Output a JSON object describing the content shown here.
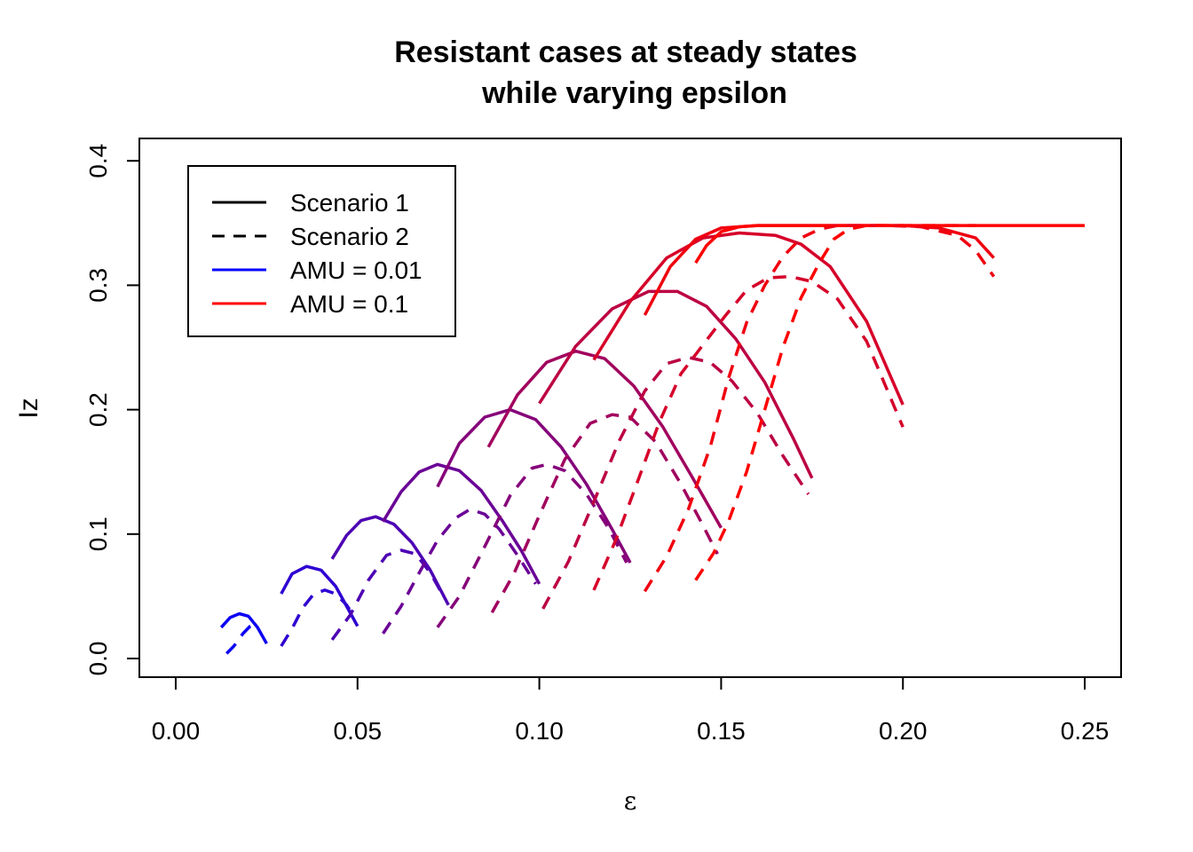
{
  "chart_data": {
    "type": "line",
    "title_line1": "Resistant cases at steady states",
    "title_line2": "while varying epsilon",
    "xlabel": "ε",
    "ylabel": "Iz",
    "xlim": [
      -0.01,
      0.26
    ],
    "ylim": [
      -0.015,
      0.418
    ],
    "x_ticks": [
      0.0,
      0.05,
      0.1,
      0.15,
      0.2,
      0.25
    ],
    "x_tick_labels": [
      "0.00",
      "0.05",
      "0.10",
      "0.15",
      "0.20",
      "0.25"
    ],
    "y_ticks": [
      0.0,
      0.1,
      0.2,
      0.3,
      0.4
    ],
    "y_tick_labels": [
      "0.0",
      "0.1",
      "0.2",
      "0.3",
      "0.4"
    ],
    "grid": false,
    "legend_placement": "top-left",
    "legend": [
      {
        "label": "Scenario 1",
        "color": "#000000",
        "dash": "solid"
      },
      {
        "label": "Scenario 2",
        "color": "#000000",
        "dash": "dashed"
      },
      {
        "label": "AMU = 0.01",
        "color": "#0000ff",
        "dash": "solid"
      },
      {
        "label": "AMU = 0.1",
        "color": "#ff0000",
        "dash": "solid"
      }
    ],
    "colors": [
      "#0d00f2",
      "#2e00d1",
      "#4d00b3",
      "#6a0096",
      "#85007a",
      "#a1005e",
      "#bc0043",
      "#d60029",
      "#ef0010",
      "#ff0000"
    ],
    "series": [
      {
        "scenario": 1,
        "amu_index": 0,
        "x": [
          0.0125,
          0.015,
          0.0175,
          0.02,
          0.0225,
          0.025
        ],
        "y": [
          0.025,
          0.033,
          0.036,
          0.034,
          0.025,
          0.012
        ]
      },
      {
        "scenario": 1,
        "amu_index": 1,
        "x": [
          0.029,
          0.032,
          0.036,
          0.04,
          0.044,
          0.047,
          0.05
        ],
        "y": [
          0.052,
          0.068,
          0.074,
          0.071,
          0.058,
          0.042,
          0.026
        ]
      },
      {
        "scenario": 1,
        "amu_index": 2,
        "x": [
          0.043,
          0.047,
          0.051,
          0.055,
          0.06,
          0.065,
          0.07,
          0.075
        ],
        "y": [
          0.08,
          0.099,
          0.111,
          0.114,
          0.108,
          0.093,
          0.071,
          0.043
        ]
      },
      {
        "scenario": 1,
        "amu_index": 3,
        "x": [
          0.057,
          0.062,
          0.067,
          0.072,
          0.078,
          0.084,
          0.09,
          0.095,
          0.1
        ],
        "y": [
          0.11,
          0.134,
          0.15,
          0.156,
          0.151,
          0.135,
          0.11,
          0.087,
          0.06
        ]
      },
      {
        "scenario": 1,
        "amu_index": 4,
        "x": [
          0.072,
          0.078,
          0.085,
          0.092,
          0.099,
          0.106,
          0.113,
          0.12,
          0.125
        ],
        "y": [
          0.138,
          0.173,
          0.194,
          0.2,
          0.192,
          0.17,
          0.14,
          0.104,
          0.077
        ]
      },
      {
        "scenario": 1,
        "amu_index": 5,
        "x": [
          0.086,
          0.094,
          0.102,
          0.11,
          0.118,
          0.126,
          0.134,
          0.142,
          0.15
        ],
        "y": [
          0.17,
          0.212,
          0.238,
          0.247,
          0.241,
          0.219,
          0.186,
          0.146,
          0.105
        ]
      },
      {
        "scenario": 1,
        "amu_index": 6,
        "x": [
          0.1,
          0.11,
          0.12,
          0.13,
          0.138,
          0.146,
          0.154,
          0.162,
          0.17,
          0.175
        ],
        "y": [
          0.205,
          0.251,
          0.281,
          0.295,
          0.295,
          0.283,
          0.257,
          0.222,
          0.176,
          0.145
        ]
      },
      {
        "scenario": 1,
        "amu_index": 7,
        "x": [
          0.115,
          0.125,
          0.135,
          0.145,
          0.155,
          0.165,
          0.172,
          0.18,
          0.19,
          0.2
        ],
        "y": [
          0.24,
          0.287,
          0.322,
          0.338,
          0.342,
          0.34,
          0.333,
          0.315,
          0.271,
          0.204
        ]
      },
      {
        "scenario": 1,
        "amu_index": 8,
        "x": [
          0.129,
          0.136,
          0.143,
          0.15,
          0.16,
          0.17,
          0.18,
          0.19,
          0.2,
          0.21,
          0.22,
          0.225
        ],
        "y": [
          0.276,
          0.315,
          0.337,
          0.346,
          0.348,
          0.348,
          0.348,
          0.348,
          0.348,
          0.346,
          0.338,
          0.322
        ]
      },
      {
        "scenario": 1,
        "amu_index": 9,
        "x": [
          0.143,
          0.146,
          0.15,
          0.155,
          0.16,
          0.17,
          0.18,
          0.19,
          0.2,
          0.21,
          0.22,
          0.23,
          0.24,
          0.25
        ],
        "y": [
          0.318,
          0.332,
          0.343,
          0.347,
          0.348,
          0.348,
          0.348,
          0.348,
          0.348,
          0.348,
          0.348,
          0.348,
          0.348,
          0.348
        ]
      },
      {
        "scenario": 2,
        "amu_index": 0,
        "x": [
          0.014,
          0.016,
          0.0185,
          0.0205,
          0.022
        ],
        "y": [
          0.004,
          0.01,
          0.02,
          0.026,
          0.028
        ]
      },
      {
        "scenario": 2,
        "amu_index": 1,
        "x": [
          0.029,
          0.032,
          0.035,
          0.038,
          0.041,
          0.044,
          0.047,
          0.049
        ],
        "y": [
          0.01,
          0.024,
          0.041,
          0.052,
          0.055,
          0.052,
          0.043,
          0.034
        ]
      },
      {
        "scenario": 2,
        "amu_index": 2,
        "x": [
          0.043,
          0.048,
          0.053,
          0.058,
          0.062,
          0.066,
          0.07,
          0.074
        ],
        "y": [
          0.015,
          0.035,
          0.063,
          0.083,
          0.087,
          0.084,
          0.069,
          0.048
        ]
      },
      {
        "scenario": 2,
        "amu_index": 3,
        "x": [
          0.057,
          0.062,
          0.067,
          0.072,
          0.077,
          0.081,
          0.085,
          0.089,
          0.094,
          0.099
        ],
        "y": [
          0.02,
          0.042,
          0.069,
          0.095,
          0.113,
          0.12,
          0.116,
          0.104,
          0.083,
          0.06
        ]
      },
      {
        "scenario": 2,
        "amu_index": 4,
        "x": [
          0.072,
          0.078,
          0.085,
          0.092,
          0.098,
          0.102,
          0.107,
          0.113,
          0.119,
          0.124
        ],
        "y": [
          0.025,
          0.05,
          0.09,
          0.131,
          0.153,
          0.156,
          0.151,
          0.132,
          0.105,
          0.077
        ]
      },
      {
        "scenario": 2,
        "amu_index": 5,
        "x": [
          0.087,
          0.093,
          0.1,
          0.107,
          0.114,
          0.12,
          0.125,
          0.132,
          0.139,
          0.145,
          0.149
        ],
        "y": [
          0.037,
          0.068,
          0.115,
          0.16,
          0.189,
          0.196,
          0.194,
          0.174,
          0.14,
          0.107,
          0.084
        ]
      },
      {
        "scenario": 2,
        "amu_index": 6,
        "x": [
          0.101,
          0.108,
          0.115,
          0.122,
          0.129,
          0.135,
          0.141,
          0.147,
          0.153,
          0.16,
          0.167,
          0.174
        ],
        "y": [
          0.04,
          0.078,
          0.126,
          0.175,
          0.215,
          0.237,
          0.242,
          0.238,
          0.223,
          0.197,
          0.163,
          0.132
        ]
      },
      {
        "scenario": 2,
        "amu_index": 7,
        "x": [
          0.115,
          0.121,
          0.127,
          0.133,
          0.139,
          0.145,
          0.151,
          0.157,
          0.163,
          0.169,
          0.175,
          0.182,
          0.19,
          0.2
        ],
        "y": [
          0.055,
          0.095,
          0.142,
          0.19,
          0.229,
          0.252,
          0.275,
          0.296,
          0.306,
          0.307,
          0.303,
          0.289,
          0.255,
          0.186
        ]
      },
      {
        "scenario": 2,
        "amu_index": 8,
        "x": [
          0.129,
          0.135,
          0.141,
          0.147,
          0.152,
          0.157,
          0.162,
          0.167,
          0.172,
          0.177,
          0.182,
          0.188,
          0.195,
          0.205,
          0.215,
          0.22,
          0.225
        ],
        "y": [
          0.054,
          0.082,
          0.12,
          0.17,
          0.225,
          0.27,
          0.3,
          0.323,
          0.338,
          0.345,
          0.348,
          0.348,
          0.348,
          0.347,
          0.34,
          0.328,
          0.307
        ]
      },
      {
        "scenario": 2,
        "amu_index": 9,
        "x": [
          0.143,
          0.148,
          0.152,
          0.157,
          0.162,
          0.167,
          0.172,
          0.177,
          0.181,
          0.185,
          0.19,
          0.2,
          0.21,
          0.22
        ],
        "y": [
          0.063,
          0.085,
          0.11,
          0.15,
          0.2,
          0.25,
          0.29,
          0.318,
          0.337,
          0.345,
          0.348,
          0.348,
          0.348,
          0.348
        ]
      }
    ]
  }
}
